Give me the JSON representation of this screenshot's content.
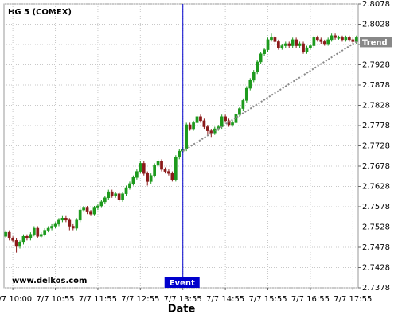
{
  "chart_data": {
    "type": "candlestick",
    "title": "HG 5 (COMEX)",
    "x_label": "Date",
    "watermark": "www.delkos.com",
    "up_color": "#1d9a1d",
    "down_color": "#8b1a1a",
    "grid": true,
    "ylim": [
      2.7378,
      2.8078
    ],
    "yticks": [
      2.7378,
      2.7428,
      2.7478,
      2.7528,
      2.7578,
      2.7628,
      2.7678,
      2.7728,
      2.7778,
      2.7828,
      2.7878,
      2.7928,
      2.7978,
      2.8028,
      2.8078
    ],
    "categories": [
      null,
      null,
      "7/7 10:00",
      null,
      null,
      null,
      null,
      null,
      null,
      null,
      null,
      null,
      null,
      null,
      "7/7 10:55",
      null,
      null,
      null,
      null,
      null,
      null,
      null,
      null,
      null,
      null,
      null,
      "7/7 11:55",
      null,
      null,
      null,
      null,
      null,
      null,
      null,
      null,
      null,
      null,
      null,
      "7/7 12:55",
      null,
      null,
      null,
      null,
      null,
      null,
      null,
      null,
      null,
      null,
      null,
      "7/7 13:55",
      null,
      null,
      null,
      null,
      null,
      null,
      null,
      null,
      null,
      null,
      null,
      "7/7 14:55",
      null,
      null,
      null,
      null,
      null,
      null,
      null,
      null,
      null,
      null,
      null,
      "7/7 15:55",
      null,
      null,
      null,
      null,
      null,
      null,
      null,
      null,
      null,
      null,
      null,
      "7/7 16:55",
      null,
      null,
      null,
      null,
      null,
      null,
      null,
      null,
      null,
      null,
      null,
      "7/7 17:55",
      null
    ],
    "ohlc": [
      [
        2.7505,
        2.752,
        2.75,
        2.7515
      ],
      [
        2.7515,
        2.752,
        2.7495,
        2.75
      ],
      [
        2.75,
        2.7505,
        2.749,
        2.7495
      ],
      [
        2.7495,
        2.75,
        2.7465,
        2.748
      ],
      [
        2.748,
        2.7495,
        2.7475,
        2.749
      ],
      [
        2.749,
        2.751,
        2.7485,
        2.7505
      ],
      [
        2.7505,
        2.751,
        2.7495,
        2.75
      ],
      [
        2.75,
        2.7515,
        2.7495,
        2.751
      ],
      [
        2.751,
        2.753,
        2.7505,
        2.7525
      ],
      [
        2.7525,
        2.753,
        2.75,
        2.7505
      ],
      [
        2.7505,
        2.7515,
        2.75,
        2.751
      ],
      [
        2.751,
        2.7525,
        2.7505,
        2.752
      ],
      [
        2.752,
        2.753,
        2.7515,
        2.7525
      ],
      [
        2.7525,
        2.7535,
        2.752,
        2.753
      ],
      [
        2.753,
        2.754,
        2.7525,
        2.7535
      ],
      [
        2.7535,
        2.755,
        2.753,
        2.7545
      ],
      [
        2.7545,
        2.7555,
        2.754,
        2.755
      ],
      [
        2.755,
        2.7555,
        2.754,
        2.7545
      ],
      [
        2.7545,
        2.755,
        2.752,
        2.753
      ],
      [
        2.753,
        2.7535,
        2.752,
        2.7525
      ],
      [
        2.7525,
        2.755,
        2.752,
        2.7545
      ],
      [
        2.7545,
        2.7575,
        2.754,
        2.757
      ],
      [
        2.757,
        2.758,
        2.7565,
        2.7575
      ],
      [
        2.7575,
        2.758,
        2.756,
        2.7565
      ],
      [
        2.7565,
        2.757,
        2.7555,
        2.756
      ],
      [
        2.756,
        2.758,
        2.7555,
        2.7575
      ],
      [
        2.7575,
        2.7585,
        2.757,
        2.758
      ],
      [
        2.758,
        2.7595,
        2.7575,
        2.759
      ],
      [
        2.759,
        2.7605,
        2.7585,
        2.76
      ],
      [
        2.76,
        2.762,
        2.7595,
        2.7615
      ],
      [
        2.7615,
        2.762,
        2.76,
        2.7605
      ],
      [
        2.7605,
        2.7615,
        2.76,
        2.761
      ],
      [
        2.761,
        2.7615,
        2.759,
        2.7595
      ],
      [
        2.7595,
        2.7615,
        2.759,
        2.761
      ],
      [
        2.761,
        2.763,
        2.7605,
        2.7625
      ],
      [
        2.7625,
        2.764,
        2.762,
        2.7635
      ],
      [
        2.7635,
        2.7655,
        2.763,
        2.765
      ],
      [
        2.765,
        2.767,
        2.7645,
        2.7665
      ],
      [
        2.7665,
        2.769,
        2.766,
        2.7685
      ],
      [
        2.7685,
        2.769,
        2.7655,
        2.766
      ],
      [
        2.766,
        2.7665,
        2.763,
        2.764
      ],
      [
        2.764,
        2.766,
        2.7635,
        2.7655
      ],
      [
        2.7655,
        2.7685,
        2.765,
        2.768
      ],
      [
        2.768,
        2.7695,
        2.7675,
        2.769
      ],
      [
        2.769,
        2.7695,
        2.7665,
        2.767
      ],
      [
        2.767,
        2.7675,
        2.766,
        2.7665
      ],
      [
        2.7665,
        2.767,
        2.7655,
        2.766
      ],
      [
        2.766,
        2.7665,
        2.764,
        2.7645
      ],
      [
        2.7645,
        2.7705,
        2.764,
        2.77
      ],
      [
        2.77,
        2.772,
        2.7695,
        2.7715
      ],
      [
        2.7715,
        2.7725,
        2.771,
        2.772
      ],
      [
        2.772,
        2.7785,
        2.7715,
        2.778
      ],
      [
        2.778,
        2.7785,
        2.7765,
        2.777
      ],
      [
        2.777,
        2.779,
        2.7765,
        2.7785
      ],
      [
        2.7785,
        2.7805,
        2.778,
        2.78
      ],
      [
        2.78,
        2.7805,
        2.7785,
        2.779
      ],
      [
        2.779,
        2.7795,
        2.777,
        2.7775
      ],
      [
        2.7775,
        2.778,
        2.7755,
        2.7765
      ],
      [
        2.7765,
        2.777,
        2.775,
        2.776
      ],
      [
        2.776,
        2.7775,
        2.7755,
        2.777
      ],
      [
        2.777,
        2.778,
        2.7765,
        2.7775
      ],
      [
        2.7775,
        2.7805,
        2.777,
        2.78
      ],
      [
        2.78,
        2.7805,
        2.7785,
        2.779
      ],
      [
        2.779,
        2.7795,
        2.7775,
        2.778
      ],
      [
        2.778,
        2.779,
        2.7775,
        2.7785
      ],
      [
        2.7785,
        2.781,
        2.778,
        2.7805
      ],
      [
        2.7805,
        2.7825,
        2.78,
        2.782
      ],
      [
        2.782,
        2.7845,
        2.7815,
        2.784
      ],
      [
        2.784,
        2.7875,
        2.7835,
        2.787
      ],
      [
        2.787,
        2.7895,
        2.7865,
        2.789
      ],
      [
        2.789,
        2.7915,
        2.7885,
        2.791
      ],
      [
        2.791,
        2.794,
        2.7905,
        2.7935
      ],
      [
        2.7935,
        2.796,
        2.793,
        2.7955
      ],
      [
        2.7955,
        2.797,
        2.795,
        2.7965
      ],
      [
        2.7965,
        2.7995,
        2.796,
        2.799
      ],
      [
        2.799,
        2.8005,
        2.7985,
        2.7995
      ],
      [
        2.7995,
        2.8,
        2.798,
        2.7985
      ],
      [
        2.7985,
        2.799,
        2.7965,
        2.797
      ],
      [
        2.797,
        2.798,
        2.7965,
        2.7975
      ],
      [
        2.7975,
        2.7985,
        2.797,
        2.798
      ],
      [
        2.798,
        2.7985,
        2.797,
        2.7975
      ],
      [
        2.7975,
        2.7995,
        2.797,
        2.799
      ],
      [
        2.799,
        2.7995,
        2.797,
        2.7975
      ],
      [
        2.7975,
        2.7985,
        2.797,
        2.798
      ],
      [
        2.798,
        2.7985,
        2.7955,
        2.796
      ],
      [
        2.796,
        2.7975,
        2.7955,
        2.797
      ],
      [
        2.797,
        2.798,
        2.7965,
        2.7975
      ],
      [
        2.7975,
        2.8,
        2.797,
        2.7995
      ],
      [
        2.7995,
        2.8,
        2.7985,
        2.799
      ],
      [
        2.799,
        2.7995,
        2.798,
        2.7985
      ],
      [
        2.7985,
        2.799,
        2.7975,
        2.798
      ],
      [
        2.798,
        2.7995,
        2.7975,
        2.799
      ],
      [
        2.799,
        2.8005,
        2.7985,
        2.8
      ],
      [
        2.8,
        2.8005,
        2.799,
        2.7995
      ],
      [
        2.7995,
        2.8,
        2.799,
        2.7995
      ],
      [
        2.7995,
        2.8,
        2.7985,
        2.799
      ],
      [
        2.799,
        2.8,
        2.7985,
        2.7995
      ],
      [
        2.7995,
        2.8,
        2.7985,
        2.799
      ],
      [
        2.799,
        2.7995,
        2.798,
        2.7985
      ],
      [
        2.7985,
        2.8,
        2.798,
        2.7995
      ]
    ],
    "event": {
      "label": "Event",
      "at": "7/7 13:55",
      "color": "#0000cc"
    },
    "trend": {
      "label": "Trend",
      "from": "7/7 13:55",
      "from_value": 2.7715,
      "to_value": 2.7985,
      "color": "#888888"
    }
  }
}
